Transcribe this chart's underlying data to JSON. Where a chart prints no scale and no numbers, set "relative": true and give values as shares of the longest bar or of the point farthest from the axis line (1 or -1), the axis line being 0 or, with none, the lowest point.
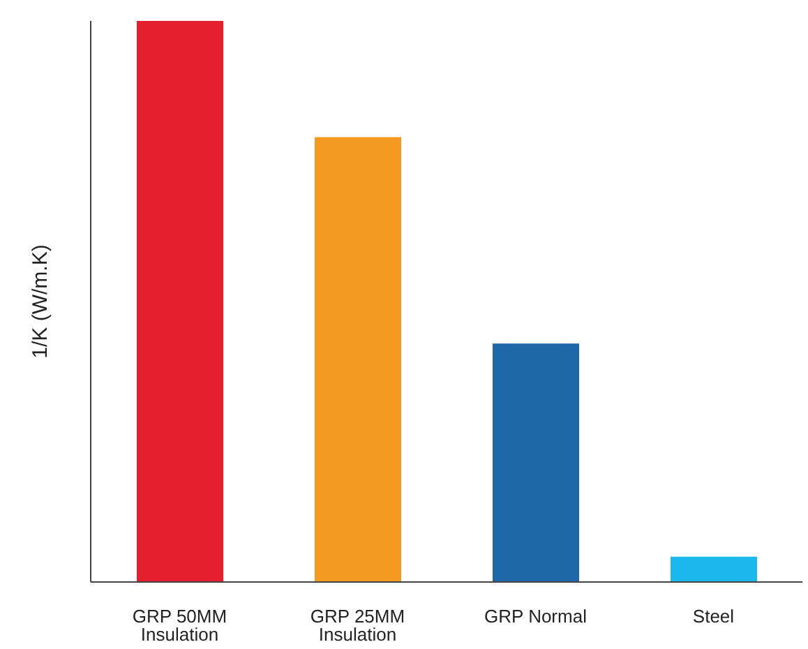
{
  "chart_data": {
    "type": "bar",
    "relative": true,
    "ylabel": "1/K (W/m.K)",
    "categories": [
      "GRP 50MM Insulation",
      "GRP 25MM Insulation",
      "GRP Normal",
      "Steel"
    ],
    "values": [
      1,
      0.793,
      0.425,
      0.045
    ],
    "colors": [
      "#e4202e",
      "#f59a20",
      "#1f68a8",
      "#1ab8ec"
    ],
    "grid": false,
    "legend": false
  }
}
